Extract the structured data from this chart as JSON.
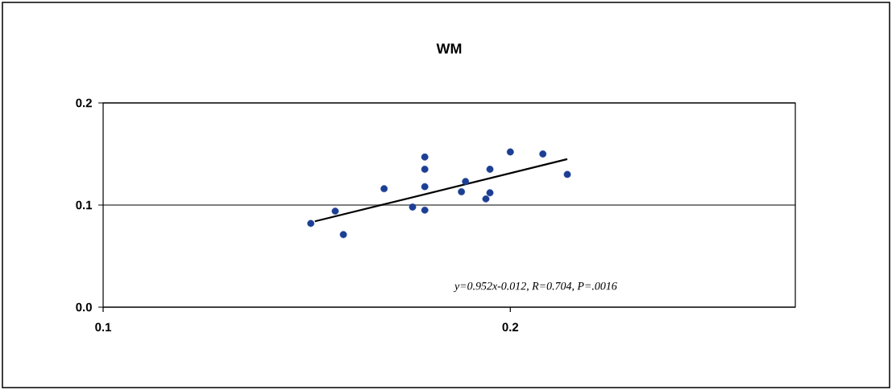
{
  "chart_data": {
    "type": "scatter",
    "title": "WM",
    "xlim": [
      0.1,
      0.27
    ],
    "ylim": [
      0,
      0.2
    ],
    "xticks": [
      0.1,
      0.2
    ],
    "yticks": [
      {
        "value": 0,
        "label": "0.0"
      },
      0.1,
      0.2
    ],
    "grid": "y",
    "series": [
      {
        "marker": "circle",
        "color": "#1c3f94",
        "x": [
          0.151,
          0.157,
          0.159,
          0.169,
          0.176,
          0.179,
          0.179,
          0.179,
          0.179,
          0.188,
          0.189,
          0.195,
          0.195,
          0.194,
          0.2,
          0.208,
          0.214
        ],
        "values": [
          0.082,
          0.094,
          0.071,
          0.116,
          0.098,
          0.147,
          0.135,
          0.118,
          0.095,
          0.113,
          0.123,
          0.135,
          0.112,
          0.106,
          0.152,
          0.15,
          0.13
        ]
      },
      {
        "type": "line",
        "marker": "none",
        "color": "#000000",
        "x": [
          0.152,
          0.214
        ],
        "values": [
          0.084,
          0.145
        ]
      }
    ],
    "annotations": [
      "y=0.952x-0.012, R=0.704, P=.0016"
    ]
  }
}
